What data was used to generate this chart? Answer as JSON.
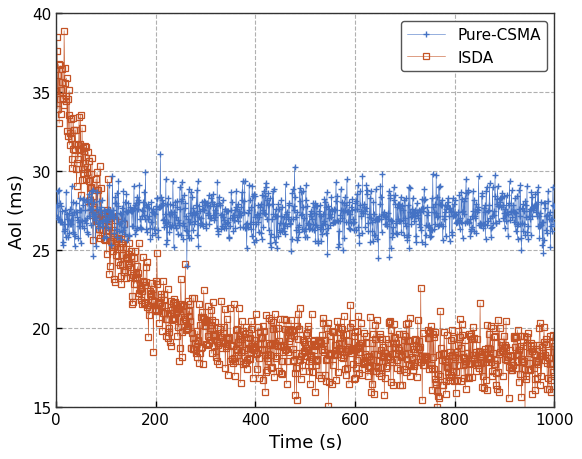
{
  "title": "",
  "xlabel": "Time (s)",
  "ylabel": "AoI (ms)",
  "xlim": [
    0,
    1000
  ],
  "ylim": [
    15,
    40
  ],
  "yticks": [
    15,
    20,
    25,
    30,
    35,
    40
  ],
  "xticks": [
    0,
    200,
    400,
    600,
    800,
    1000
  ],
  "grid_color": "#b0b0b0",
  "grid_style": "--",
  "csma_color": "#4472c4",
  "isda_color": "#c45325",
  "csma_label": "Pure-CSMA",
  "isda_label": "ISDA",
  "csma_marker": "+",
  "isda_marker": "s",
  "csma_mean": 27.2,
  "csma_std": 1.0,
  "isda_start": 37.0,
  "isda_decay_tau": 120,
  "isda_mean": 18.3,
  "isda_std": 1.2,
  "n_points": 1000,
  "seed_csma": 42,
  "seed_isda": 123,
  "background_color": "#ffffff",
  "markersize_csma": 5,
  "markersize_isda": 4,
  "linewidth": 0.4,
  "legend_fontsize": 11,
  "axis_fontsize": 13,
  "tick_fontsize": 11
}
